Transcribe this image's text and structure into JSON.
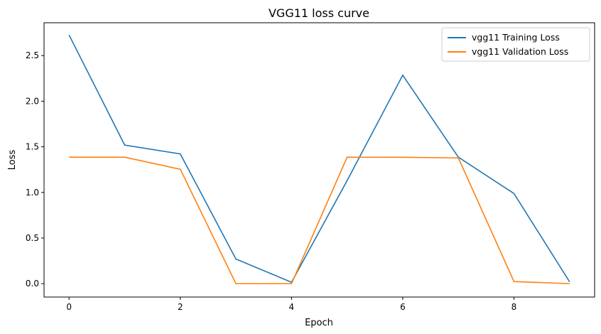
{
  "chart_data": {
    "type": "line",
    "title": "VGG11 loss curve",
    "xlabel": "Epoch",
    "ylabel": "Loss",
    "x": [
      0,
      1,
      2,
      3,
      4,
      5,
      6,
      7,
      8,
      9
    ],
    "xlim": [
      -0.45,
      9.45
    ],
    "ylim": [
      -0.147,
      2.86
    ],
    "xticks": [
      0,
      2,
      4,
      6,
      8
    ],
    "yticks": [
      0.0,
      0.5,
      1.0,
      1.5,
      2.0,
      2.5
    ],
    "grid": false,
    "legend_position": "top-right",
    "series": [
      {
        "name": "vgg11 Training Loss",
        "color": "#1f77b4",
        "values": [
          2.726,
          1.519,
          1.422,
          0.27,
          0.015,
          1.13,
          2.285,
          1.386,
          0.988,
          0.02
        ]
      },
      {
        "name": "vgg11 Validation Loss",
        "color": "#ff7f0e",
        "values": [
          1.386,
          1.386,
          1.254,
          0.0,
          0.0,
          1.386,
          1.385,
          1.378,
          0.023,
          0.0
        ]
      }
    ]
  }
}
